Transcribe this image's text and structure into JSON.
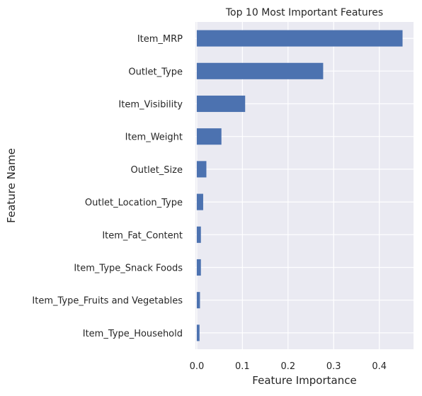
{
  "chart_data": {
    "type": "bar",
    "orientation": "horizontal",
    "title": "Top 10 Most Important Features",
    "xlabel": "Feature Importance",
    "ylabel": "Feature Name",
    "categories": [
      "Item_MRP",
      "Outlet_Type",
      "Item_Visibility",
      "Item_Weight",
      "Outlet_Size",
      "Outlet_Location_Type",
      "Item_Fat_Content",
      "Item_Type_Snack Foods",
      "Item_Type_Fruits and Vegetables",
      "Item_Type_Household"
    ],
    "values": [
      0.451,
      0.277,
      0.106,
      0.054,
      0.021,
      0.014,
      0.009,
      0.009,
      0.007,
      0.006
    ],
    "xlim": [
      -0.003,
      0.475
    ],
    "xticks": [
      0.0,
      0.1,
      0.2,
      0.3,
      0.4
    ],
    "xtick_labels": [
      "0.0",
      "0.1",
      "0.2",
      "0.3",
      "0.4"
    ],
    "grid": true,
    "legend": "none",
    "colors": {
      "bar": "#4c72b0",
      "plot_background": "#eaeaf2",
      "grid": "#ffffff"
    }
  }
}
